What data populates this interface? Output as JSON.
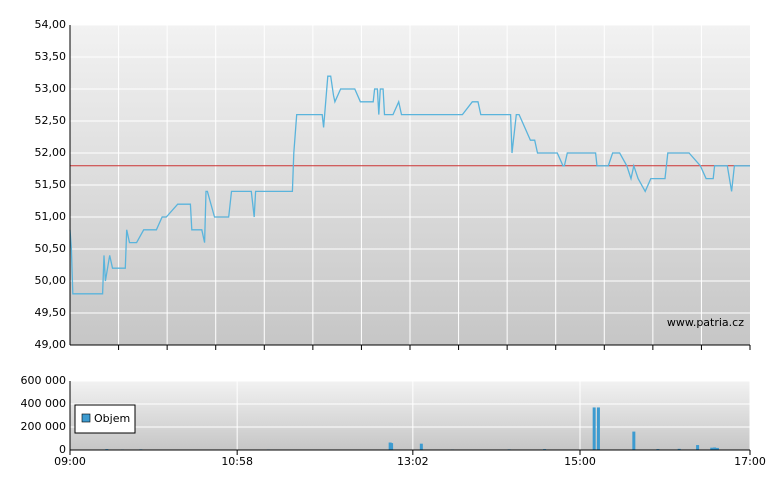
{
  "chart_data": [
    {
      "type": "line",
      "xlim": [
        "09:00",
        "17:00"
      ],
      "ylim": [
        49,
        54
      ],
      "yticks": [
        {
          "value": 49,
          "label": "49,00"
        },
        {
          "value": 49.5,
          "label": "49,50"
        },
        {
          "value": 50,
          "label": "50,00"
        },
        {
          "value": 50.5,
          "label": "50,50"
        },
        {
          "value": 51,
          "label": "51,00"
        },
        {
          "value": 51.5,
          "label": "51,50"
        },
        {
          "value": 52,
          "label": "52,00"
        },
        {
          "value": 52.5,
          "label": "52,50"
        },
        {
          "value": 53,
          "label": "53,00"
        },
        {
          "value": 53.5,
          "label": "53,50"
        },
        {
          "value": 54,
          "label": "54,00"
        }
      ],
      "grid": true,
      "reference_line": 51.8,
      "reference_color": "#cc3333",
      "watermark": "www.patria.cz",
      "series": [
        {
          "color": "#5ab4dc",
          "x": [
            "09:00",
            "09:01",
            "09:02",
            "09:23",
            "09:24",
            "09:25",
            "09:28",
            "09:30",
            "09:39",
            "09:40",
            "09:42",
            "09:47",
            "09:52",
            "10:01",
            "10:05",
            "10:08",
            "10:16",
            "10:25",
            "10:26",
            "10:33",
            "10:35",
            "10:36",
            "10:37",
            "10:42",
            "10:52",
            "10:54",
            "11:08",
            "11:10",
            "11:11",
            "11:37",
            "11:38",
            "11:40",
            "11:58",
            "11:59",
            "12:02",
            "12:04",
            "12:06",
            "12:07",
            "12:11",
            "12:21",
            "12:25",
            "12:34",
            "12:35",
            "12:37",
            "12:38",
            "12:39",
            "12:41",
            "12:42",
            "12:48",
            "12:52",
            "12:54",
            "13:37",
            "13:44",
            "13:48",
            "13:50",
            "14:11",
            "14:12",
            "14:15",
            "14:17",
            "14:25",
            "14:28",
            "14:30",
            "14:44",
            "14:48",
            "14:49",
            "14:51",
            "15:11",
            "15:12",
            "15:20",
            "15:23",
            "15:28",
            "15:33",
            "15:36",
            "15:38",
            "15:41",
            "15:46",
            "15:50",
            "16:00",
            "16:02",
            "16:17",
            "16:25",
            "16:29",
            "16:34",
            "16:35",
            "16:44",
            "16:47",
            "16:49",
            "17:00"
          ],
          "values": [
            50.8,
            50.5,
            49.8,
            49.8,
            50.4,
            50.0,
            50.4,
            50.2,
            50.2,
            50.8,
            50.6,
            50.6,
            50.8,
            50.8,
            51.0,
            51.0,
            51.2,
            51.2,
            50.8,
            50.8,
            50.6,
            51.4,
            51.4,
            51.0,
            51.0,
            51.4,
            51.4,
            51.0,
            51.4,
            51.4,
            52.0,
            52.6,
            52.6,
            52.4,
            53.2,
            53.2,
            52.9,
            52.8,
            53.0,
            53.0,
            52.8,
            52.8,
            53.0,
            53.0,
            52.6,
            53.0,
            53.0,
            52.6,
            52.6,
            52.8,
            52.6,
            52.6,
            52.8,
            52.8,
            52.6,
            52.6,
            52.0,
            52.6,
            52.6,
            52.2,
            52.2,
            52.0,
            52.0,
            51.8,
            51.8,
            52.0,
            52.0,
            51.8,
            51.8,
            52.0,
            52.0,
            51.8,
            51.6,
            51.8,
            51.6,
            51.4,
            51.6,
            51.6,
            52.0,
            52.0,
            51.8,
            51.6,
            51.6,
            51.8,
            51.8,
            51.4,
            51.8,
            51.8
          ]
        }
      ]
    },
    {
      "type": "bar",
      "xlim": [
        "09:00",
        "17:00"
      ],
      "xticks": [
        "09:00",
        "10:58",
        "13:02",
        "15:00",
        "17:00"
      ],
      "ylim": [
        0,
        600000
      ],
      "yticks": [
        0,
        {
          "value": 200000,
          "label": "200 000"
        },
        {
          "value": 400000,
          "label": "400 000"
        },
        {
          "value": 600000,
          "label": "600 000"
        }
      ],
      "grid": true,
      "series": [
        {
          "name": "Objem",
          "color": "#3d9bd0",
          "x": [
            "09:26",
            "09:37",
            "09:50",
            "10:40",
            "11:20",
            "12:46",
            "12:47",
            "13:08",
            "13:30",
            "14:10",
            "14:35",
            "15:10",
            "15:13",
            "15:38",
            "15:55",
            "16:10",
            "16:23",
            "16:33",
            "16:35",
            "16:37"
          ],
          "values": [
            8000,
            5000,
            6000,
            4000,
            5000,
            65000,
            60000,
            55000,
            5000,
            6000,
            8000,
            370000,
            370000,
            160000,
            8000,
            10000,
            43000,
            20000,
            22000,
            18000
          ]
        }
      ]
    }
  ]
}
